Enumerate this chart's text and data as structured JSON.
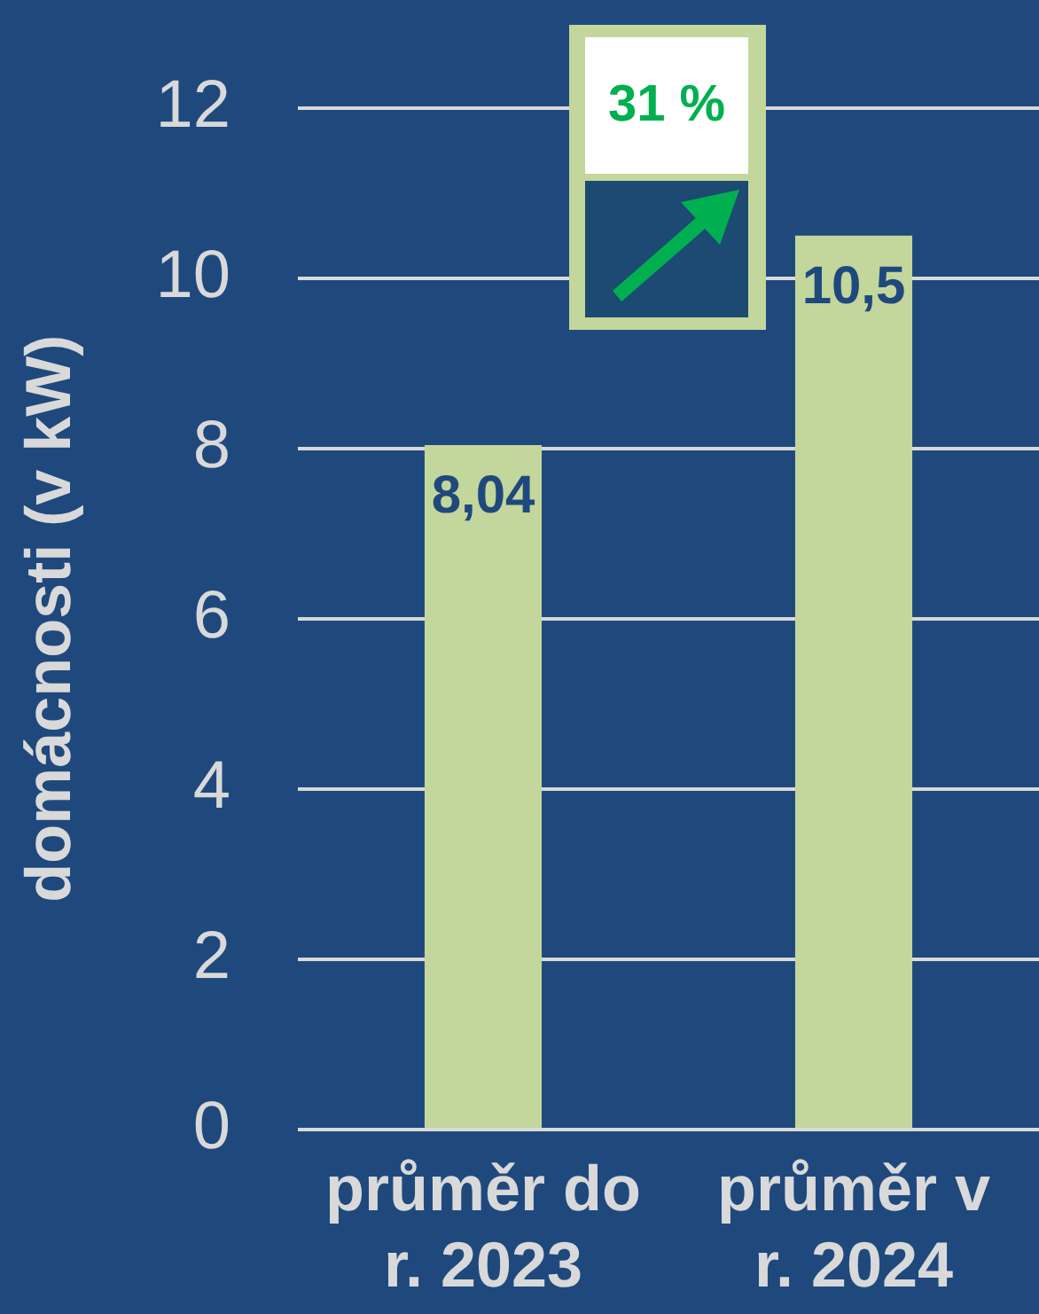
{
  "chart_data": {
    "type": "bar",
    "categories": [
      "průměr do r. 2023",
      "průměr v r. 2024"
    ],
    "values": [
      8.04,
      10.5
    ],
    "color": "#c3d69b",
    "value_labels": [
      "8,04",
      "10,5"
    ],
    "ylabel": "domácnosti (v kW)",
    "ylim": [
      0,
      12
    ],
    "yticks": [
      0,
      2,
      4,
      6,
      8,
      10,
      12
    ],
    "grid": "y",
    "annotations": [
      "31 %"
    ]
  }
}
